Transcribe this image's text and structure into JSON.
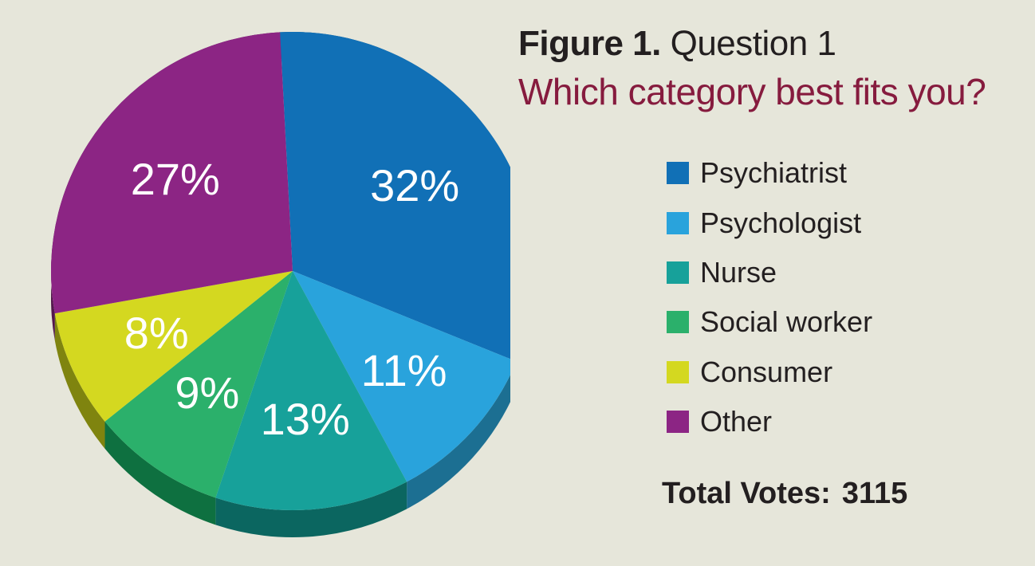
{
  "header": {
    "figure_label": "Figure 1.",
    "figure_question": "Question 1",
    "subtitle": "Which category best fits you?"
  },
  "legend": {
    "items": [
      {
        "label": "Psychiatrist",
        "color": "#1170b6"
      },
      {
        "label": "Psychologist",
        "color": "#29a3dc"
      },
      {
        "label": "Nurse",
        "color": "#17a19a"
      },
      {
        "label": "Social worker",
        "color": "#2bb06b"
      },
      {
        "label": "Consumer",
        "color": "#d4d820"
      },
      {
        "label": "Other",
        "color": "#8c2584"
      }
    ]
  },
  "total": {
    "label": "Total Votes:",
    "value": "3115"
  },
  "chart_data": {
    "type": "pie",
    "categories": [
      "Psychiatrist",
      "Psychologist",
      "Nurse",
      "Social worker",
      "Consumer",
      "Other"
    ],
    "values": [
      32,
      11,
      13,
      9,
      8,
      27
    ],
    "value_labels": [
      "32%",
      "11%",
      "13%",
      "9%",
      "8%",
      "27%"
    ],
    "colors": [
      "#1170b6",
      "#29a3dc",
      "#17a19a",
      "#2bb06b",
      "#d4d820",
      "#8c2584"
    ],
    "side_colors": [
      "#0d5a92",
      "#1c6f92",
      "#0b6660",
      "#0e7040",
      "#7f840f",
      "#52164c"
    ],
    "legend_position": "right",
    "style": "3d"
  }
}
